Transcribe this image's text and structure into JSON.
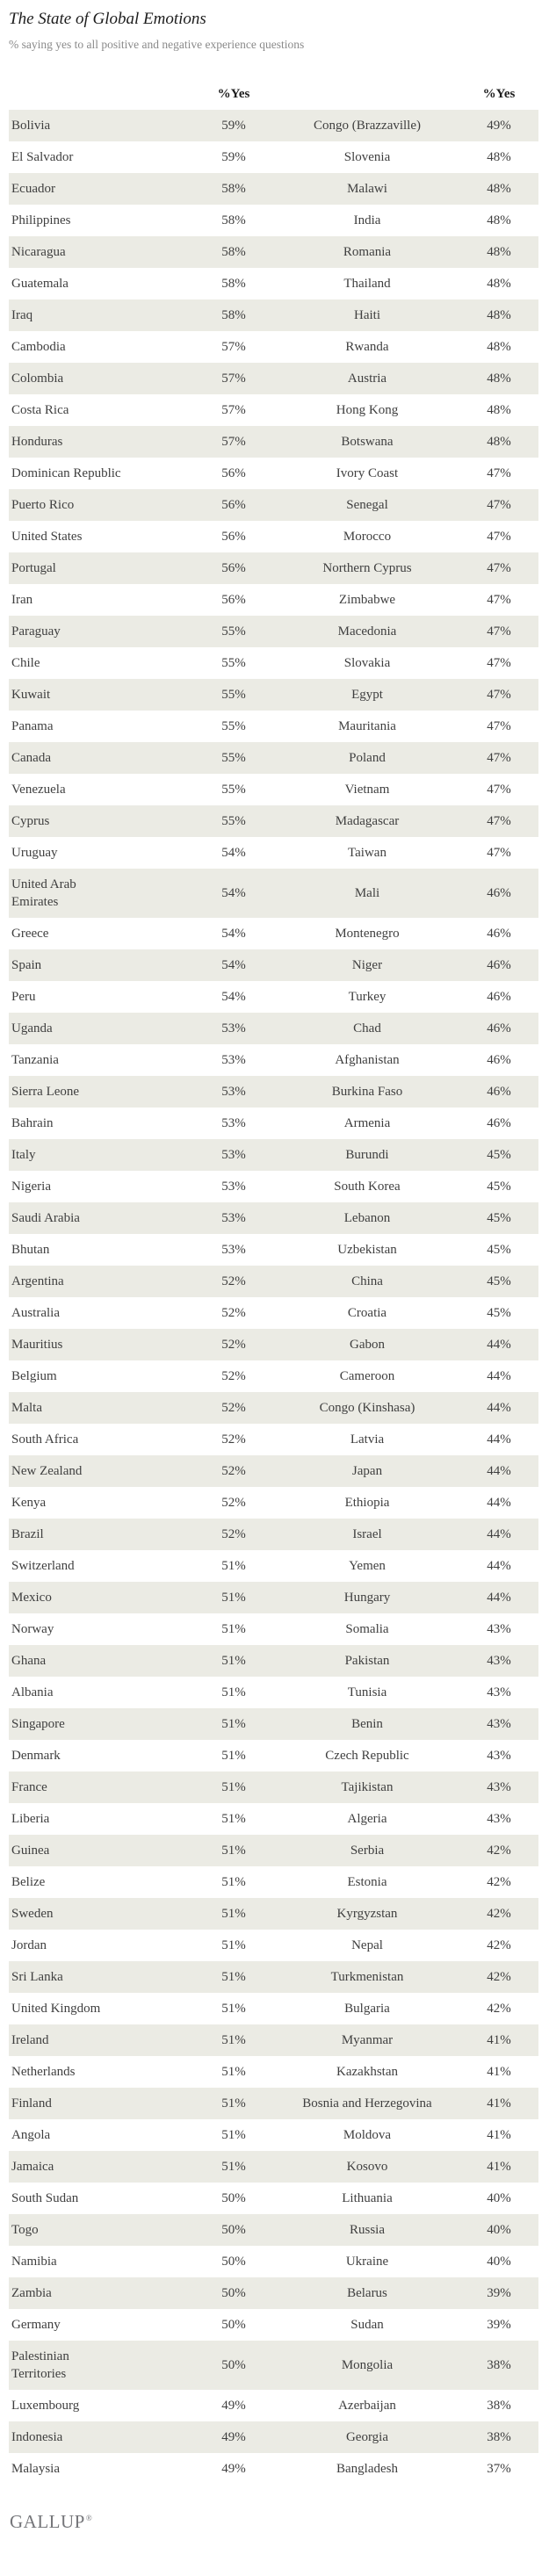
{
  "header": {
    "title": "The State of Global Emotions",
    "subtitle": "% saying yes to all positive and negative experience questions"
  },
  "chart_data": {
    "type": "table",
    "title": "The State of Global Emotions",
    "subtitle": "% saying yes to all positive and negative experience questions",
    "layout": "two side-by-side country/value column pairs, alternating row shading",
    "visible_column_headers": [
      "%Yes",
      "%Yes"
    ],
    "columns": [
      "country_left",
      "pct_yes_left",
      "country_right",
      "pct_yes_right"
    ],
    "rows": [
      [
        "Bolivia",
        "59%",
        "Congo (Brazzaville)",
        "49%"
      ],
      [
        "El Salvador",
        "59%",
        "Slovenia",
        "48%"
      ],
      [
        "Ecuador",
        "58%",
        "Malawi",
        "48%"
      ],
      [
        "Philippines",
        "58%",
        "India",
        "48%"
      ],
      [
        "Nicaragua",
        "58%",
        "Romania",
        "48%"
      ],
      [
        "Guatemala",
        "58%",
        "Thailand",
        "48%"
      ],
      [
        "Iraq",
        "58%",
        "Haiti",
        "48%"
      ],
      [
        "Cambodia",
        "57%",
        "Rwanda",
        "48%"
      ],
      [
        "Colombia",
        "57%",
        "Austria",
        "48%"
      ],
      [
        "Costa Rica",
        "57%",
        "Hong Kong",
        "48%"
      ],
      [
        "Honduras",
        "57%",
        "Botswana",
        "48%"
      ],
      [
        "Dominican Republic",
        "56%",
        "Ivory Coast",
        "47%"
      ],
      [
        "Puerto Rico",
        "56%",
        "Senegal",
        "47%"
      ],
      [
        "United States",
        "56%",
        "Morocco",
        "47%"
      ],
      [
        "Portugal",
        "56%",
        "Northern Cyprus",
        "47%"
      ],
      [
        "Iran",
        "56%",
        "Zimbabwe",
        "47%"
      ],
      [
        "Paraguay",
        "55%",
        "Macedonia",
        "47%"
      ],
      [
        "Chile",
        "55%",
        "Slovakia",
        "47%"
      ],
      [
        "Kuwait",
        "55%",
        "Egypt",
        "47%"
      ],
      [
        "Panama",
        "55%",
        "Mauritania",
        "47%"
      ],
      [
        "Canada",
        "55%",
        "Poland",
        "47%"
      ],
      [
        "Venezuela",
        "55%",
        "Vietnam",
        "47%"
      ],
      [
        "Cyprus",
        "55%",
        "Madagascar",
        "47%"
      ],
      [
        "Uruguay",
        "54%",
        "Taiwan",
        "47%"
      ],
      [
        "United Arab Emirates",
        "54%",
        "Mali",
        "46%"
      ],
      [
        "Greece",
        "54%",
        "Montenegro",
        "46%"
      ],
      [
        "Spain",
        "54%",
        "Niger",
        "46%"
      ],
      [
        "Peru",
        "54%",
        "Turkey",
        "46%"
      ],
      [
        "Uganda",
        "53%",
        "Chad",
        "46%"
      ],
      [
        "Tanzania",
        "53%",
        "Afghanistan",
        "46%"
      ],
      [
        "Sierra Leone",
        "53%",
        "Burkina Faso",
        "46%"
      ],
      [
        "Bahrain",
        "53%",
        "Armenia",
        "46%"
      ],
      [
        "Italy",
        "53%",
        "Burundi",
        "45%"
      ],
      [
        "Nigeria",
        "53%",
        "South Korea",
        "45%"
      ],
      [
        "Saudi Arabia",
        "53%",
        "Lebanon",
        "45%"
      ],
      [
        "Bhutan",
        "53%",
        "Uzbekistan",
        "45%"
      ],
      [
        "Argentina",
        "52%",
        "China",
        "45%"
      ],
      [
        "Australia",
        "52%",
        "Croatia",
        "45%"
      ],
      [
        "Mauritius",
        "52%",
        "Gabon",
        "44%"
      ],
      [
        "Belgium",
        "52%",
        "Cameroon",
        "44%"
      ],
      [
        "Malta",
        "52%",
        "Congo (Kinshasa)",
        "44%"
      ],
      [
        "South Africa",
        "52%",
        "Latvia",
        "44%"
      ],
      [
        "New Zealand",
        "52%",
        "Japan",
        "44%"
      ],
      [
        "Kenya",
        "52%",
        "Ethiopia",
        "44%"
      ],
      [
        "Brazil",
        "52%",
        "Israel",
        "44%"
      ],
      [
        "Switzerland",
        "51%",
        "Yemen",
        "44%"
      ],
      [
        "Mexico",
        "51%",
        "Hungary",
        "44%"
      ],
      [
        "Norway",
        "51%",
        "Somalia",
        "43%"
      ],
      [
        "Ghana",
        "51%",
        "Pakistan",
        "43%"
      ],
      [
        "Albania",
        "51%",
        "Tunisia",
        "43%"
      ],
      [
        "Singapore",
        "51%",
        "Benin",
        "43%"
      ],
      [
        "Denmark",
        "51%",
        "Czech Republic",
        "43%"
      ],
      [
        "France",
        "51%",
        "Tajikistan",
        "43%"
      ],
      [
        "Liberia",
        "51%",
        "Algeria",
        "43%"
      ],
      [
        "Guinea",
        "51%",
        "Serbia",
        "42%"
      ],
      [
        "Belize",
        "51%",
        "Estonia",
        "42%"
      ],
      [
        "Sweden",
        "51%",
        "Kyrgyzstan",
        "42%"
      ],
      [
        "Jordan",
        "51%",
        "Nepal",
        "42%"
      ],
      [
        "Sri Lanka",
        "51%",
        "Turkmenistan",
        "42%"
      ],
      [
        "United Kingdom",
        "51%",
        "Bulgaria",
        "42%"
      ],
      [
        "Ireland",
        "51%",
        "Myanmar",
        "41%"
      ],
      [
        "Netherlands",
        "51%",
        "Kazakhstan",
        "41%"
      ],
      [
        "Finland",
        "51%",
        "Bosnia and Herzegovina",
        "41%"
      ],
      [
        "Angola",
        "51%",
        "Moldova",
        "41%"
      ],
      [
        "Jamaica",
        "51%",
        "Kosovo",
        "41%"
      ],
      [
        "South Sudan",
        "50%",
        "Lithuania",
        "40%"
      ],
      [
        "Togo",
        "50%",
        "Russia",
        "40%"
      ],
      [
        "Namibia",
        "50%",
        "Ukraine",
        "40%"
      ],
      [
        "Zambia",
        "50%",
        "Belarus",
        "39%"
      ],
      [
        "Germany",
        "50%",
        "Sudan",
        "39%"
      ],
      [
        "Palestinian Territories",
        "50%",
        "Mongolia",
        "38%"
      ],
      [
        "Luxembourg",
        "49%",
        "Azerbaijan",
        "38%"
      ],
      [
        "Indonesia",
        "49%",
        "Georgia",
        "38%"
      ],
      [
        "Malaysia",
        "49%",
        "Bangladesh",
        "37%"
      ]
    ]
  },
  "footer": {
    "brand": "GALLUP",
    "trademark": "®"
  },
  "colors": {
    "stripe": "#EBEBE4",
    "body_text": "#3F3F3F",
    "title_text": "#1D1D1D",
    "subtitle_text": "#8A8A8A",
    "brand_text": "#75767A",
    "background": "#FFFFFF"
  }
}
